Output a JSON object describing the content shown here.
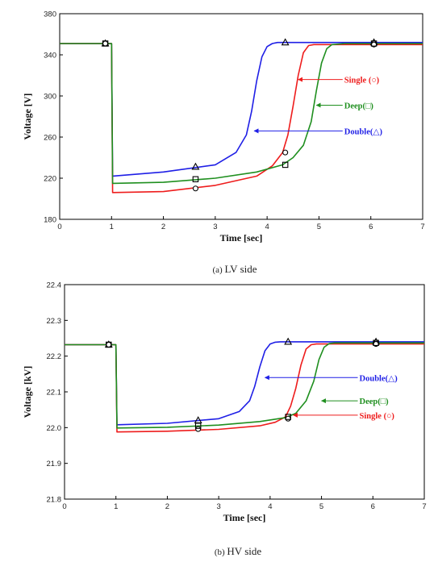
{
  "colors": {
    "double": "#1f1fe6",
    "single": "#ee1c1c",
    "deep": "#1f8f1f",
    "frame": "#000000"
  },
  "chart_data": [
    {
      "type": "line",
      "caption_prefix": "(a)",
      "caption_rest": "LV side",
      "xlabel": "Time [sec]",
      "ylabel": "Voltage [V]",
      "xlim": [
        0,
        7
      ],
      "ylim": [
        180,
        380
      ],
      "x_ticks": [
        "0",
        "1",
        "2",
        "3",
        "4",
        "5",
        "6",
        "7"
      ],
      "y_ticks": [
        "180",
        "220",
        "260",
        "300",
        "340",
        "380"
      ],
      "x_tick_values": [
        0,
        1,
        2,
        3,
        4,
        5,
        6,
        7
      ],
      "y_tick_values": [
        180,
        220,
        260,
        300,
        340,
        380
      ],
      "grid": false,
      "series": [
        {
          "name": "Double(△)",
          "color": "#1f1fe6",
          "marker": "triangle",
          "x": [
            0,
            0.98,
            1.0,
            1.02,
            2.0,
            3.0,
            3.4,
            3.6,
            3.7,
            3.8,
            3.9,
            4.0,
            4.1,
            4.2,
            4.3,
            5.0,
            6.0,
            7.0
          ],
          "y": [
            351,
            351,
            351,
            222,
            226,
            233,
            245,
            262,
            285,
            315,
            338,
            348,
            351,
            352,
            352,
            352,
            352,
            352
          ]
        },
        {
          "name": "Single (○)",
          "color": "#ee1c1c",
          "marker": "circle",
          "x": [
            0,
            0.98,
            1.0,
            1.02,
            2.0,
            3.0,
            3.8,
            4.1,
            4.3,
            4.4,
            4.5,
            4.6,
            4.7,
            4.8,
            4.9,
            5.5,
            6.0,
            7.0
          ],
          "y": [
            351,
            351,
            351,
            206,
            207,
            213,
            222,
            232,
            245,
            262,
            290,
            320,
            342,
            349,
            350,
            350,
            350,
            350
          ]
        },
        {
          "name": "Deep(□)",
          "color": "#1f8f1f",
          "marker": "square",
          "x": [
            0,
            0.98,
            1.0,
            1.02,
            2.0,
            3.0,
            3.8,
            4.3,
            4.5,
            4.7,
            4.85,
            4.95,
            5.05,
            5.15,
            5.25,
            5.5,
            6.0,
            7.0
          ],
          "y": [
            351,
            351,
            351,
            215,
            216,
            220,
            226,
            233,
            240,
            252,
            275,
            305,
            332,
            346,
            350,
            351,
            351,
            351
          ]
        }
      ],
      "markers": [
        {
          "series": 0,
          "x": 0.88,
          "y": 351
        },
        {
          "series": 0,
          "x": 2.62,
          "y": 231
        },
        {
          "series": 0,
          "x": 4.35,
          "y": 352
        },
        {
          "series": 0,
          "x": 6.06,
          "y": 352
        },
        {
          "series": 1,
          "x": 0.88,
          "y": 351
        },
        {
          "series": 1,
          "x": 2.62,
          "y": 210
        },
        {
          "series": 1,
          "x": 4.35,
          "y": 245
        },
        {
          "series": 1,
          "x": 6.06,
          "y": 350
        },
        {
          "series": 2,
          "x": 0.88,
          "y": 351
        },
        {
          "series": 2,
          "x": 2.62,
          "y": 219
        },
        {
          "series": 2,
          "x": 4.35,
          "y": 233
        },
        {
          "series": 2,
          "x": 6.06,
          "y": 351
        }
      ],
      "annotations": [
        {
          "text": "Single (○)",
          "series": 1,
          "text_x": 5.55,
          "text_y": 316,
          "arrow_to_x": 4.6,
          "arrow_to_y": 316
        },
        {
          "text": "Deep(□)",
          "series": 2,
          "text_x": 5.55,
          "text_y": 291,
          "arrow_to_x": 4.95,
          "arrow_to_y": 291
        },
        {
          "text": "Double(△)",
          "series": 0,
          "text_x": 5.55,
          "text_y": 266,
          "arrow_to_x": 3.75,
          "arrow_to_y": 266
        }
      ]
    },
    {
      "type": "line",
      "caption_prefix": "(b)",
      "caption_rest": "HV side",
      "xlabel": "Time [sec]",
      "ylabel": "Voltage [kV]",
      "xlim": [
        0,
        7
      ],
      "ylim": [
        21.8,
        22.4
      ],
      "x_ticks": [
        "0",
        "1",
        "2",
        "3",
        "4",
        "5",
        "6",
        "7"
      ],
      "y_ticks": [
        "21.8",
        "21.9",
        "22.0",
        "22.1",
        "22.2",
        "22.3",
        "22.4"
      ],
      "x_tick_values": [
        0,
        1,
        2,
        3,
        4,
        5,
        6,
        7
      ],
      "y_tick_values": [
        21.8,
        21.9,
        22.0,
        22.1,
        22.2,
        22.3,
        22.4
      ],
      "grid": false,
      "series": [
        {
          "name": "Double(△)",
          "color": "#1f1fe6",
          "marker": "triangle",
          "x": [
            0,
            0.98,
            1.0,
            1.02,
            2.0,
            3.0,
            3.4,
            3.6,
            3.7,
            3.8,
            3.9,
            4.0,
            4.1,
            4.2,
            4.3,
            5.0,
            6.0,
            7.0
          ],
          "y": [
            22.232,
            22.232,
            22.232,
            22.008,
            22.012,
            22.025,
            22.045,
            22.075,
            22.115,
            22.17,
            22.215,
            22.234,
            22.239,
            22.24,
            22.24,
            22.24,
            22.24,
            22.24
          ]
        },
        {
          "name": "Single (○)",
          "color": "#ee1c1c",
          "marker": "circle",
          "x": [
            0,
            0.98,
            1.0,
            1.02,
            2.0,
            3.0,
            3.8,
            4.1,
            4.3,
            4.4,
            4.5,
            4.6,
            4.7,
            4.8,
            4.9,
            5.5,
            6.0,
            7.0
          ],
          "y": [
            22.232,
            22.232,
            22.232,
            21.988,
            21.99,
            21.995,
            22.005,
            22.015,
            22.03,
            22.06,
            22.11,
            22.175,
            22.22,
            22.232,
            22.234,
            22.234,
            22.234,
            22.234
          ]
        },
        {
          "name": "Deep(□)",
          "color": "#1f8f1f",
          "marker": "square",
          "x": [
            0,
            0.98,
            1.0,
            1.02,
            2.0,
            3.0,
            3.8,
            4.3,
            4.5,
            4.7,
            4.85,
            4.95,
            5.05,
            5.15,
            5.25,
            5.5,
            6.0,
            7.0
          ],
          "y": [
            22.232,
            22.232,
            22.232,
            21.999,
            22.001,
            22.007,
            22.017,
            22.028,
            22.04,
            22.075,
            22.13,
            22.19,
            22.225,
            22.235,
            22.237,
            22.237,
            22.237,
            22.237
          ]
        }
      ],
      "markers": [
        {
          "series": 0,
          "x": 0.86,
          "y": 22.232
        },
        {
          "series": 0,
          "x": 2.6,
          "y": 22.02
        },
        {
          "series": 0,
          "x": 4.35,
          "y": 22.24
        },
        {
          "series": 0,
          "x": 6.06,
          "y": 22.24
        },
        {
          "series": 1,
          "x": 0.86,
          "y": 22.232
        },
        {
          "series": 1,
          "x": 2.6,
          "y": 21.996
        },
        {
          "series": 1,
          "x": 4.35,
          "y": 22.025
        },
        {
          "series": 1,
          "x": 6.06,
          "y": 22.234
        },
        {
          "series": 2,
          "x": 0.86,
          "y": 22.232
        },
        {
          "series": 2,
          "x": 2.6,
          "y": 22.005
        },
        {
          "series": 2,
          "x": 4.35,
          "y": 22.03
        },
        {
          "series": 2,
          "x": 6.06,
          "y": 22.237
        }
      ],
      "annotations": [
        {
          "text": "Double(△)",
          "series": 0,
          "text_x": 5.8,
          "text_y": 22.14,
          "arrow_to_x": 3.9,
          "arrow_to_y": 22.14
        },
        {
          "text": "Deep(□)",
          "series": 2,
          "text_x": 5.8,
          "text_y": 22.075,
          "arrow_to_x": 5.0,
          "arrow_to_y": 22.075
        },
        {
          "text": "Single (○)",
          "series": 1,
          "text_x": 5.8,
          "text_y": 22.035,
          "arrow_to_x": 4.45,
          "arrow_to_y": 22.035
        }
      ]
    }
  ]
}
